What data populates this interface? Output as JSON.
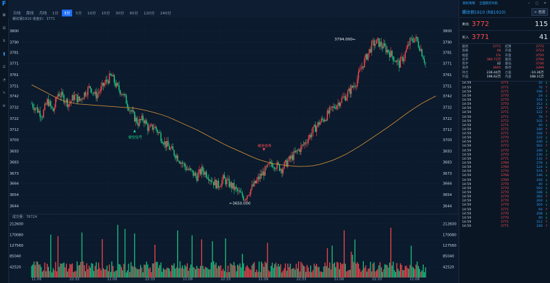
{
  "app": {
    "logo": "F"
  },
  "left_menu": [
    {
      "icon": "grid-icon",
      "label": "行情"
    },
    {
      "icon": "chart-icon",
      "label": "图表"
    },
    {
      "icon": "trade-icon",
      "label": "交易"
    },
    {
      "icon": "kline-icon",
      "label": "K线"
    },
    {
      "icon": "news-icon",
      "label": "资讯"
    },
    {
      "icon": "analysis-icon",
      "label": "分析"
    },
    {
      "icon": "tools-icon",
      "label": "工具"
    },
    {
      "icon": "settings-icon",
      "label": "设置"
    }
  ],
  "periods": [
    "日线",
    "周线",
    "月线",
    "1分",
    "3分",
    "5分",
    "10分",
    "15分",
    "30分",
    "60分",
    "120分",
    "240分"
  ],
  "active_period": "3分",
  "chart_header": "螺纹钢1910  收盘价：3771",
  "volume_header": "成交量：78724",
  "price_axis": [
    "3800",
    "3790",
    "3781",
    "3771",
    "3761",
    "3751",
    "3742",
    "3732",
    "3722",
    "3712",
    "3703",
    "3693",
    "3683",
    "3673",
    "3664",
    "3654",
    "3644"
  ],
  "volume_axis": [
    "212600",
    "170080",
    "127560",
    "85040",
    "42520"
  ],
  "time_axis": [
    "11:06",
    "22:33",
    "11:06",
    "22:33",
    "11:06",
    "22:33",
    "11:06",
    "22:33",
    "11:06",
    "22:33",
    "11:06"
  ],
  "annotations": {
    "high": "3794.000←",
    "low": "←3650.000",
    "sell_signal": "做空信号",
    "buy_signal": "做多信号"
  },
  "chart_data": {
    "type": "candlestick",
    "title": "螺纹钢1910",
    "ylim": [
      3640,
      3805
    ],
    "last_close": 3771,
    "high": 3794,
    "low": 3650,
    "volume_ylim": [
      0,
      220000
    ],
    "last_volume": 78724,
    "close_path": [
      3735,
      3730,
      3725,
      3738,
      3728,
      3745,
      3740,
      3735,
      3742,
      3738,
      3745,
      3750,
      3742,
      3748,
      3755,
      3760,
      3750,
      3745,
      3735,
      3725,
      3718,
      3722,
      3712,
      3715,
      3708,
      3700,
      3695,
      3690,
      3684,
      3678,
      3674,
      3670,
      3676,
      3672,
      3666,
      3662,
      3668,
      3664,
      3660,
      3655,
      3651,
      3658,
      3664,
      3671,
      3676,
      3682,
      3680,
      3677,
      3683,
      3688,
      3693,
      3698,
      3705,
      3712,
      3718,
      3722,
      3728,
      3733,
      3738,
      3742,
      3748,
      3755,
      3768,
      3778,
      3788,
      3790,
      3786,
      3782,
      3776,
      3770,
      3778,
      3790,
      3794,
      3785,
      3771
    ],
    "ma_path": [
      3752,
      3745,
      3738,
      3735,
      3734,
      3733,
      3732,
      3731,
      3728,
      3724,
      3718,
      3712,
      3705,
      3698,
      3692,
      3686,
      3682,
      3680,
      3679,
      3680,
      3684,
      3690,
      3698,
      3707,
      3716,
      3726,
      3735,
      3742
    ]
  },
  "quote": {
    "contract": "螺纹钢1910 (RB1910)",
    "search_btn": "← 自选",
    "sell_label": "卖出",
    "sell_price": "3772",
    "sell_vol": "115",
    "buy_label": "买入",
    "buy_price": "3771",
    "buy_vol": "41",
    "top_links": [
      "期权策略",
      "全面期货导航"
    ],
    "stats": [
      [
        "最新",
        "3771",
        "结算",
        "3772"
      ],
      [
        "涨跌",
        "48",
        "开盘",
        "3723"
      ],
      [
        "幅度",
        "1%",
        "开盘",
        "3750"
      ],
      [
        "总手",
        "384.72万",
        "最高",
        "3794"
      ],
      [
        "现手",
        "32",
        "最低",
        "3746"
      ],
      [
        "涨停",
        "3945",
        "跌停",
        "3499"
      ],
      [
        "持仓",
        "236.44万",
        "仓差",
        "-10.36万"
      ],
      [
        "外盘",
        "196.62万",
        "内盘",
        "188.11万"
      ]
    ]
  },
  "ticks": [
    {
      "t": "14:59",
      "p": "3771",
      "v": "32",
      "d": "↓"
    },
    {
      "t": "14:59",
      "p": "3771",
      "v": "70",
      "d": "↑"
    },
    {
      "t": "14:59",
      "p": "3771",
      "v": "196",
      "d": "↑"
    },
    {
      "t": "14:59",
      "p": "3770",
      "v": "24",
      "d": "↓"
    },
    {
      "t": "14:59",
      "p": "3770",
      "v": "104",
      "d": "↓"
    },
    {
      "t": "14:59",
      "p": "3770",
      "v": "312",
      "d": "↓"
    },
    {
      "t": "14:59",
      "p": "3771",
      "v": "126",
      "d": "↑"
    },
    {
      "t": "14:59",
      "p": "3771",
      "v": "122",
      "d": "↑"
    },
    {
      "t": "14:59",
      "p": "3771",
      "v": "78",
      "d": "↑"
    },
    {
      "t": "14:59",
      "p": "3772",
      "v": "102",
      "d": "↑"
    },
    {
      "t": "14:59",
      "p": "3771",
      "v": "40",
      "d": "↓"
    },
    {
      "t": "14:59",
      "p": "3771",
      "v": "180",
      "d": "↑"
    },
    {
      "t": "14:59",
      "p": "3771",
      "v": "166",
      "d": "↑"
    },
    {
      "t": "14:59",
      "p": "3770",
      "v": "122",
      "d": "↓"
    },
    {
      "t": "14:59",
      "p": "3771",
      "v": "430",
      "d": "↓"
    },
    {
      "t": "14:59",
      "p": "3772",
      "v": "562",
      "d": "↑"
    },
    {
      "t": "14:59",
      "p": "3770",
      "v": "240",
      "d": "↓"
    },
    {
      "t": "14:59",
      "p": "3770",
      "v": "230",
      "d": "↓"
    },
    {
      "t": "14:59",
      "p": "3771",
      "v": "132",
      "d": "↑"
    },
    {
      "t": "14:59",
      "p": "3769",
      "v": "278",
      "d": "↓"
    },
    {
      "t": "14:59",
      "p": "3769",
      "v": "124",
      "d": "↓"
    },
    {
      "t": "14:59",
      "p": "3770",
      "v": "574",
      "d": "↑"
    },
    {
      "t": "14:59",
      "p": "3768",
      "v": "146",
      "d": "↓"
    },
    {
      "t": "14:59",
      "p": "3769",
      "v": "244",
      "d": "↓"
    },
    {
      "t": "14:59",
      "p": "3770",
      "v": "40",
      "d": "↓"
    },
    {
      "t": "14:59",
      "p": "3770",
      "v": "592",
      "d": "↓"
    },
    {
      "t": "14:59",
      "p": "3770",
      "v": "188",
      "d": "↓"
    },
    {
      "t": "14:59",
      "p": "3770",
      "v": "282",
      "d": "↑"
    },
    {
      "t": "14:59",
      "p": "3770",
      "v": "204",
      "d": "↓"
    },
    {
      "t": "14:59",
      "p": "3770",
      "v": "304",
      "d": "↓"
    },
    {
      "t": "14:59",
      "p": "3771",
      "v": "94",
      "d": "↑"
    },
    {
      "t": "14:59",
      "p": "3770",
      "v": "208",
      "d": "↓"
    },
    {
      "t": "14:59",
      "p": "3770",
      "v": "40",
      "d": "↓"
    },
    {
      "t": "14:59",
      "p": "3771",
      "v": "212",
      "d": "↑"
    },
    {
      "t": "14:59",
      "p": "3771",
      "v": "248",
      "d": "↑"
    }
  ],
  "colors": {
    "up": "#ff4d4f",
    "down": "#1fd18a",
    "ma": "#c88a3a",
    "bg": "#0b1a2c",
    "accent": "#1e6fff"
  }
}
